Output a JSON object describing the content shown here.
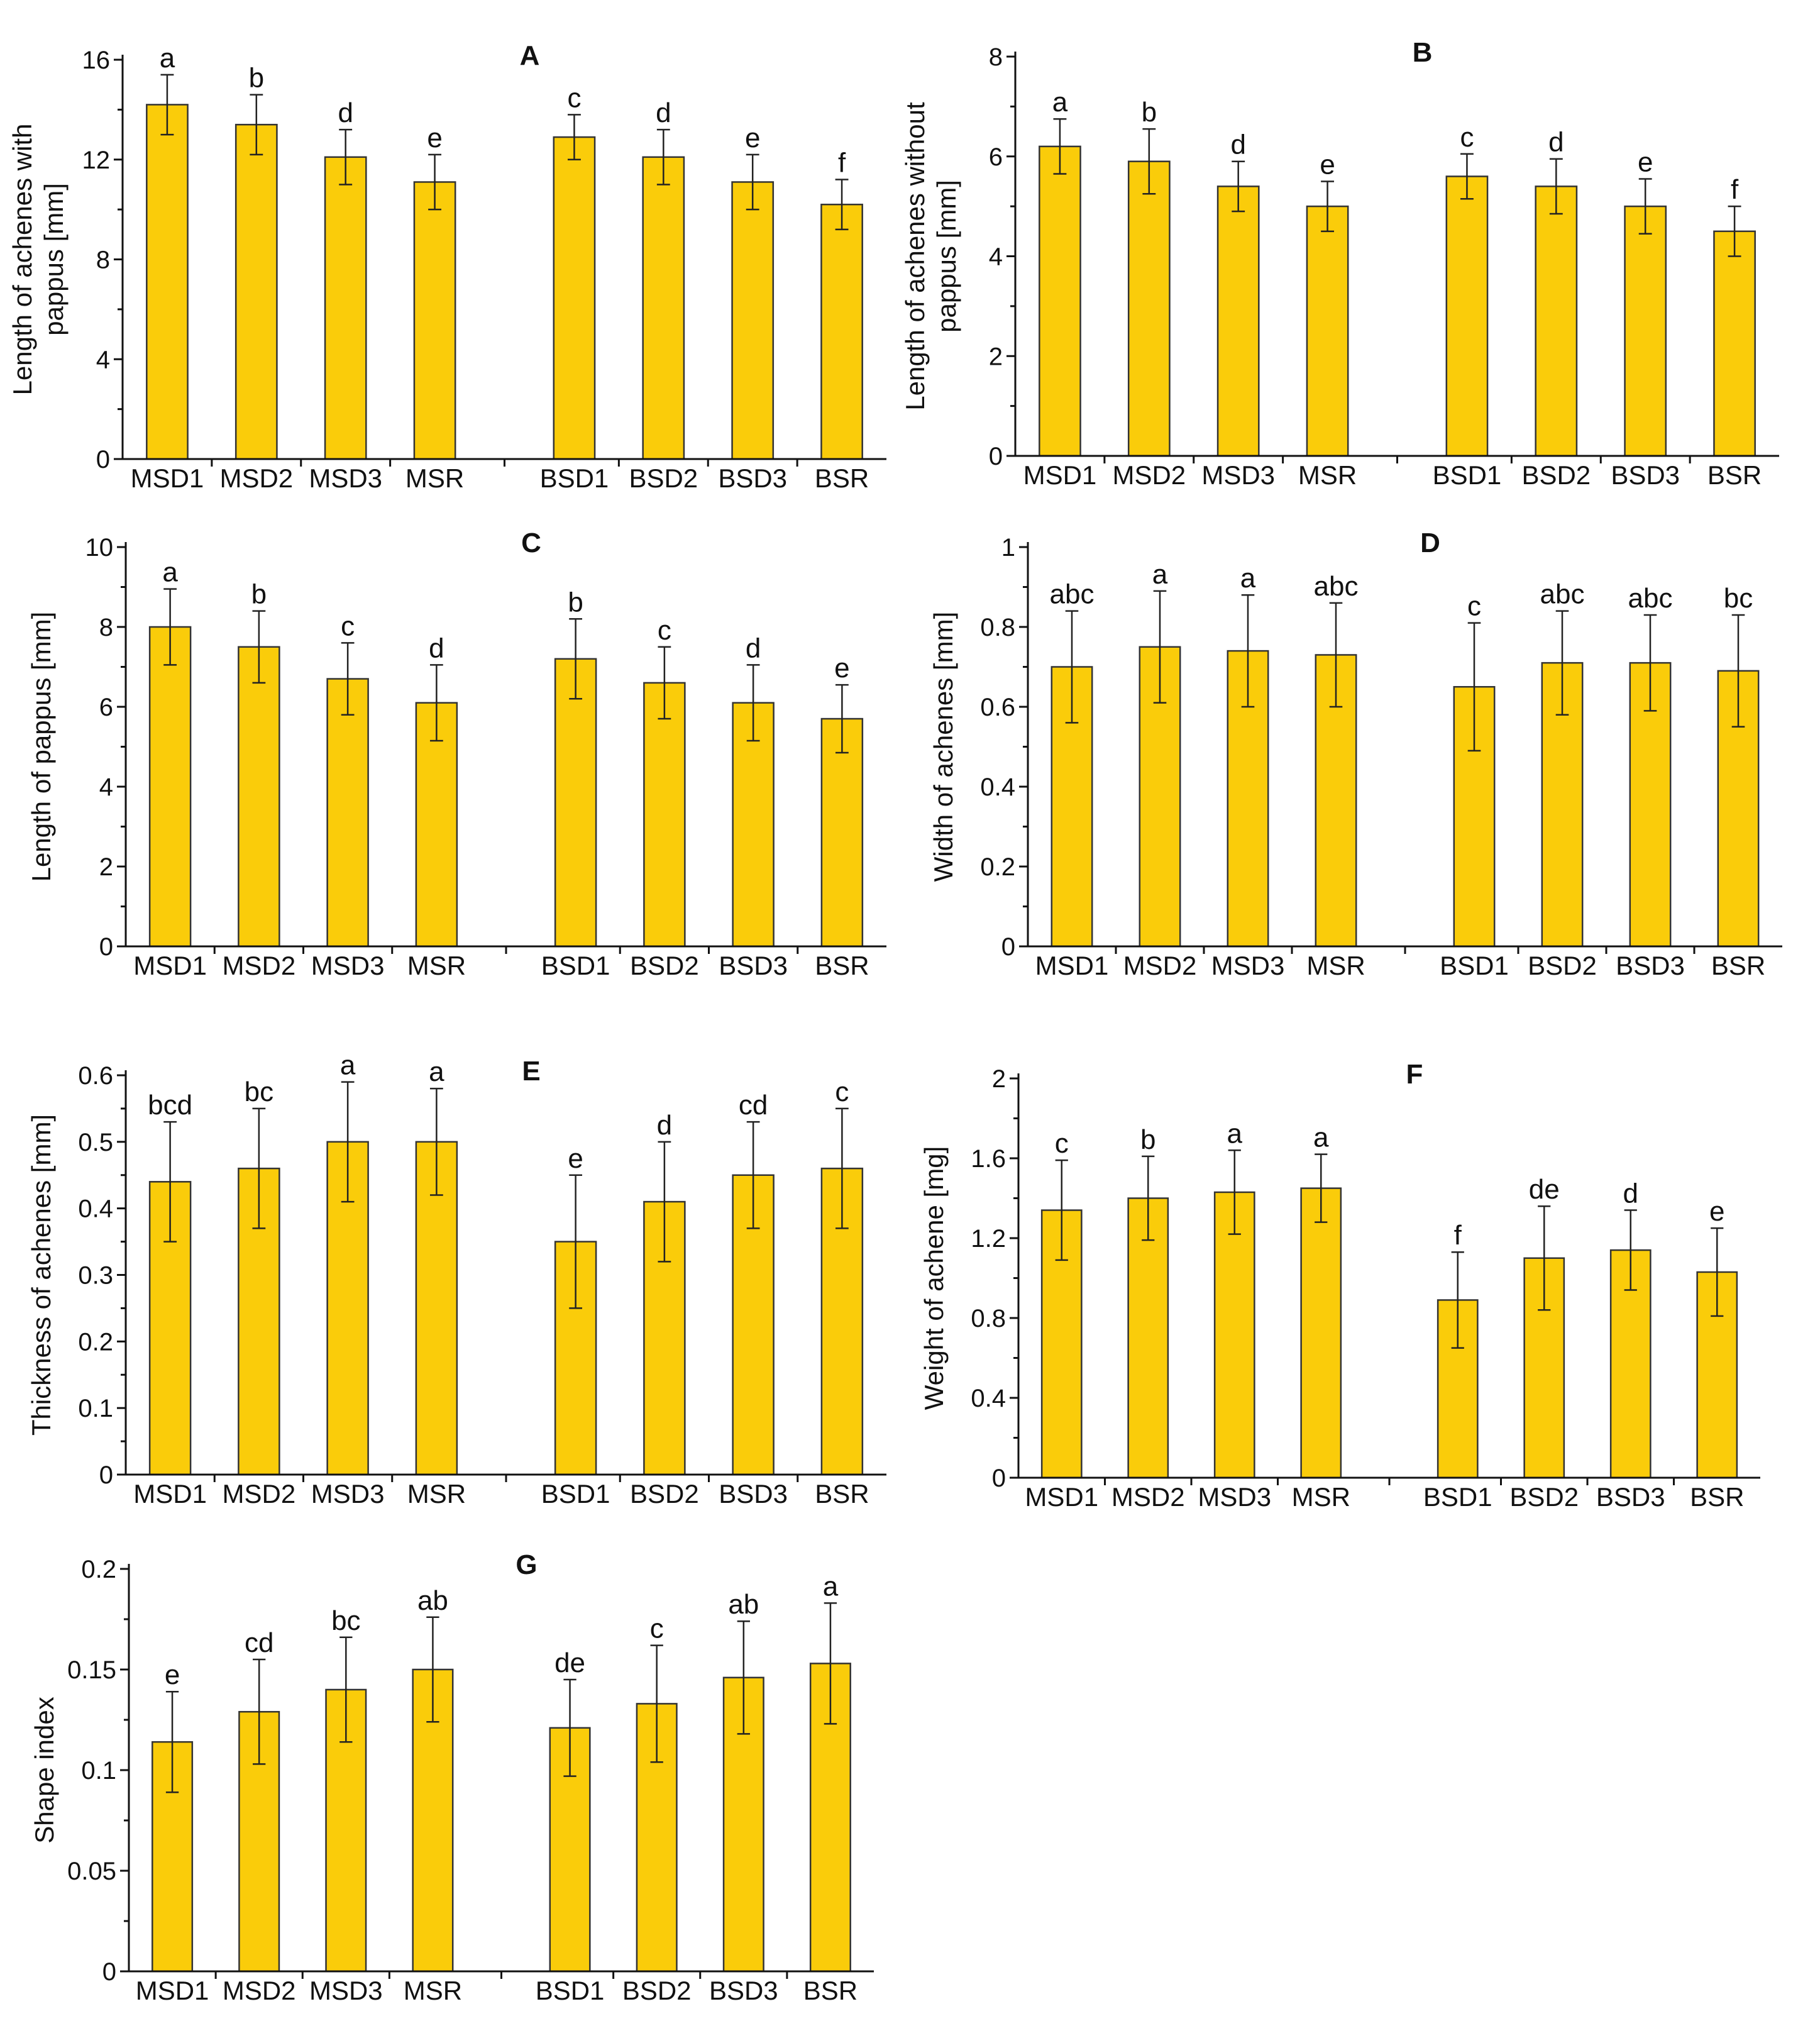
{
  "colors": {
    "bar": "#FACC0A",
    "bar_stroke": "#333333",
    "axis": "#111111"
  },
  "chart_data": [
    {
      "type": "bar",
      "title": "A",
      "ylabel": [
        "Length of achenes with",
        "pappus [mm]"
      ],
      "categories": [
        "MSD1",
        "MSD2",
        "MSD3",
        "MSR",
        "BSD1",
        "BSD2",
        "BSD3",
        "BSR"
      ],
      "values": [
        14.2,
        13.4,
        12.1,
        11.1,
        12.9,
        12.1,
        11.1,
        10.2
      ],
      "errors": [
        1.2,
        1.2,
        1.1,
        1.1,
        0.9,
        1.1,
        1.1,
        1.0
      ],
      "significance": [
        "a",
        "b",
        "d",
        "e",
        "c",
        "d",
        "e",
        "f"
      ],
      "ylim": [
        0,
        16
      ],
      "yticks": [
        0,
        4,
        8,
        12,
        16
      ],
      "ytick_labels": [
        "0",
        "4",
        "8",
        "12",
        "16"
      ]
    },
    {
      "type": "bar",
      "title": "B",
      "ylabel": [
        "Length of achenes without",
        "pappus [mm]"
      ],
      "categories": [
        "MSD1",
        "MSD2",
        "MSD3",
        "MSR",
        "BSD1",
        "BSD2",
        "BSD3",
        "BSR"
      ],
      "values": [
        6.2,
        5.9,
        5.4,
        5.0,
        5.6,
        5.4,
        5.0,
        4.5
      ],
      "errors": [
        0.55,
        0.65,
        0.5,
        0.5,
        0.45,
        0.55,
        0.55,
        0.5
      ],
      "significance": [
        "a",
        "b",
        "d",
        "e",
        "c",
        "d",
        "e",
        "f"
      ],
      "ylim": [
        0,
        8
      ],
      "yticks": [
        0,
        2,
        4,
        6,
        8
      ],
      "ytick_labels": [
        "0",
        "2",
        "4",
        "6",
        "8"
      ]
    },
    {
      "type": "bar",
      "title": "C",
      "ylabel": [
        "Length of pappus [mm]"
      ],
      "categories": [
        "MSD1",
        "MSD2",
        "MSD3",
        "MSR",
        "BSD1",
        "BSD2",
        "BSD3",
        "BSR"
      ],
      "values": [
        8.0,
        7.5,
        6.7,
        6.1,
        7.2,
        6.6,
        6.1,
        5.7
      ],
      "errors": [
        0.95,
        0.9,
        0.9,
        0.95,
        1.0,
        0.9,
        0.95,
        0.85
      ],
      "significance": [
        "a",
        "b",
        "c",
        "d",
        "b",
        "c",
        "d",
        "e"
      ],
      "ylim": [
        0,
        10
      ],
      "yticks": [
        0,
        2,
        4,
        6,
        8,
        10
      ],
      "ytick_labels": [
        "0",
        "2",
        "4",
        "6",
        "8",
        "10"
      ]
    },
    {
      "type": "bar",
      "title": "D",
      "ylabel": [
        "Width of achenes [mm]"
      ],
      "categories": [
        "MSD1",
        "MSD2",
        "MSD3",
        "MSR",
        "BSD1",
        "BSD2",
        "BSD3",
        "BSR"
      ],
      "values": [
        0.7,
        0.75,
        0.74,
        0.73,
        0.65,
        0.71,
        0.71,
        0.69
      ],
      "errors": [
        0.14,
        0.14,
        0.14,
        0.13,
        0.16,
        0.13,
        0.12,
        0.14
      ],
      "significance": [
        "abc",
        "a",
        "a",
        "abc",
        "c",
        "abc",
        "abc",
        "bc"
      ],
      "ylim": [
        0,
        1
      ],
      "yticks": [
        0,
        0.2,
        0.4,
        0.6,
        0.8,
        1
      ],
      "ytick_labels": [
        "0",
        "0.2",
        "0.4",
        "0.6",
        "0.8",
        "1"
      ]
    },
    {
      "type": "bar",
      "title": "E",
      "ylabel": [
        "Thickness of achenes [mm]"
      ],
      "categories": [
        "MSD1",
        "MSD2",
        "MSD3",
        "MSR",
        "BSD1",
        "BSD2",
        "BSD3",
        "BSR"
      ],
      "values": [
        0.44,
        0.46,
        0.5,
        0.5,
        0.35,
        0.41,
        0.45,
        0.46
      ],
      "errors": [
        0.09,
        0.09,
        0.09,
        0.08,
        0.1,
        0.09,
        0.08,
        0.09
      ],
      "significance": [
        "bcd",
        "bc",
        "a",
        "a",
        "e",
        "d",
        "cd",
        "c"
      ],
      "ylim": [
        0,
        0.6
      ],
      "yticks": [
        0,
        0.1,
        0.2,
        0.3,
        0.4,
        0.5,
        0.6
      ],
      "ytick_labels": [
        "0",
        "0.1",
        "0.2",
        "0.3",
        "0.4",
        "0.5",
        "0.6"
      ]
    },
    {
      "type": "bar",
      "title": "F",
      "ylabel": [
        "Weight of achene [mg]"
      ],
      "categories": [
        "MSD1",
        "MSD2",
        "MSD3",
        "MSR",
        "BSD1",
        "BSD2",
        "BSD3",
        "BSR"
      ],
      "values": [
        1.34,
        1.4,
        1.43,
        1.45,
        0.89,
        1.1,
        1.14,
        1.03
      ],
      "errors": [
        0.25,
        0.21,
        0.21,
        0.17,
        0.24,
        0.26,
        0.2,
        0.22
      ],
      "significance": [
        "c",
        "b",
        "a",
        "a",
        "f",
        "de",
        "d",
        "e"
      ],
      "ylim": [
        0,
        2
      ],
      "yticks": [
        0,
        0.4,
        0.8,
        1.2,
        1.6,
        2
      ],
      "ytick_labels": [
        "0",
        "0.4",
        "0.8",
        "1.2",
        "1.6",
        "2"
      ]
    },
    {
      "type": "bar",
      "title": "G",
      "ylabel": [
        "Shape index"
      ],
      "categories": [
        "MSD1",
        "MSD2",
        "MSD3",
        "MSR",
        "BSD1",
        "BSD2",
        "BSD3",
        "BSR"
      ],
      "values": [
        0.114,
        0.129,
        0.14,
        0.15,
        0.121,
        0.133,
        0.146,
        0.153
      ],
      "errors": [
        0.025,
        0.026,
        0.026,
        0.026,
        0.024,
        0.029,
        0.028,
        0.03
      ],
      "significance": [
        "e",
        "cd",
        "bc",
        "ab",
        "de",
        "c",
        "ab",
        "a"
      ],
      "ylim": [
        0,
        0.2
      ],
      "yticks": [
        0,
        0.05,
        0.1,
        0.15,
        0.2
      ],
      "ytick_labels": [
        "0",
        "0.05",
        "0.1",
        "0.15",
        "0.2"
      ]
    }
  ]
}
